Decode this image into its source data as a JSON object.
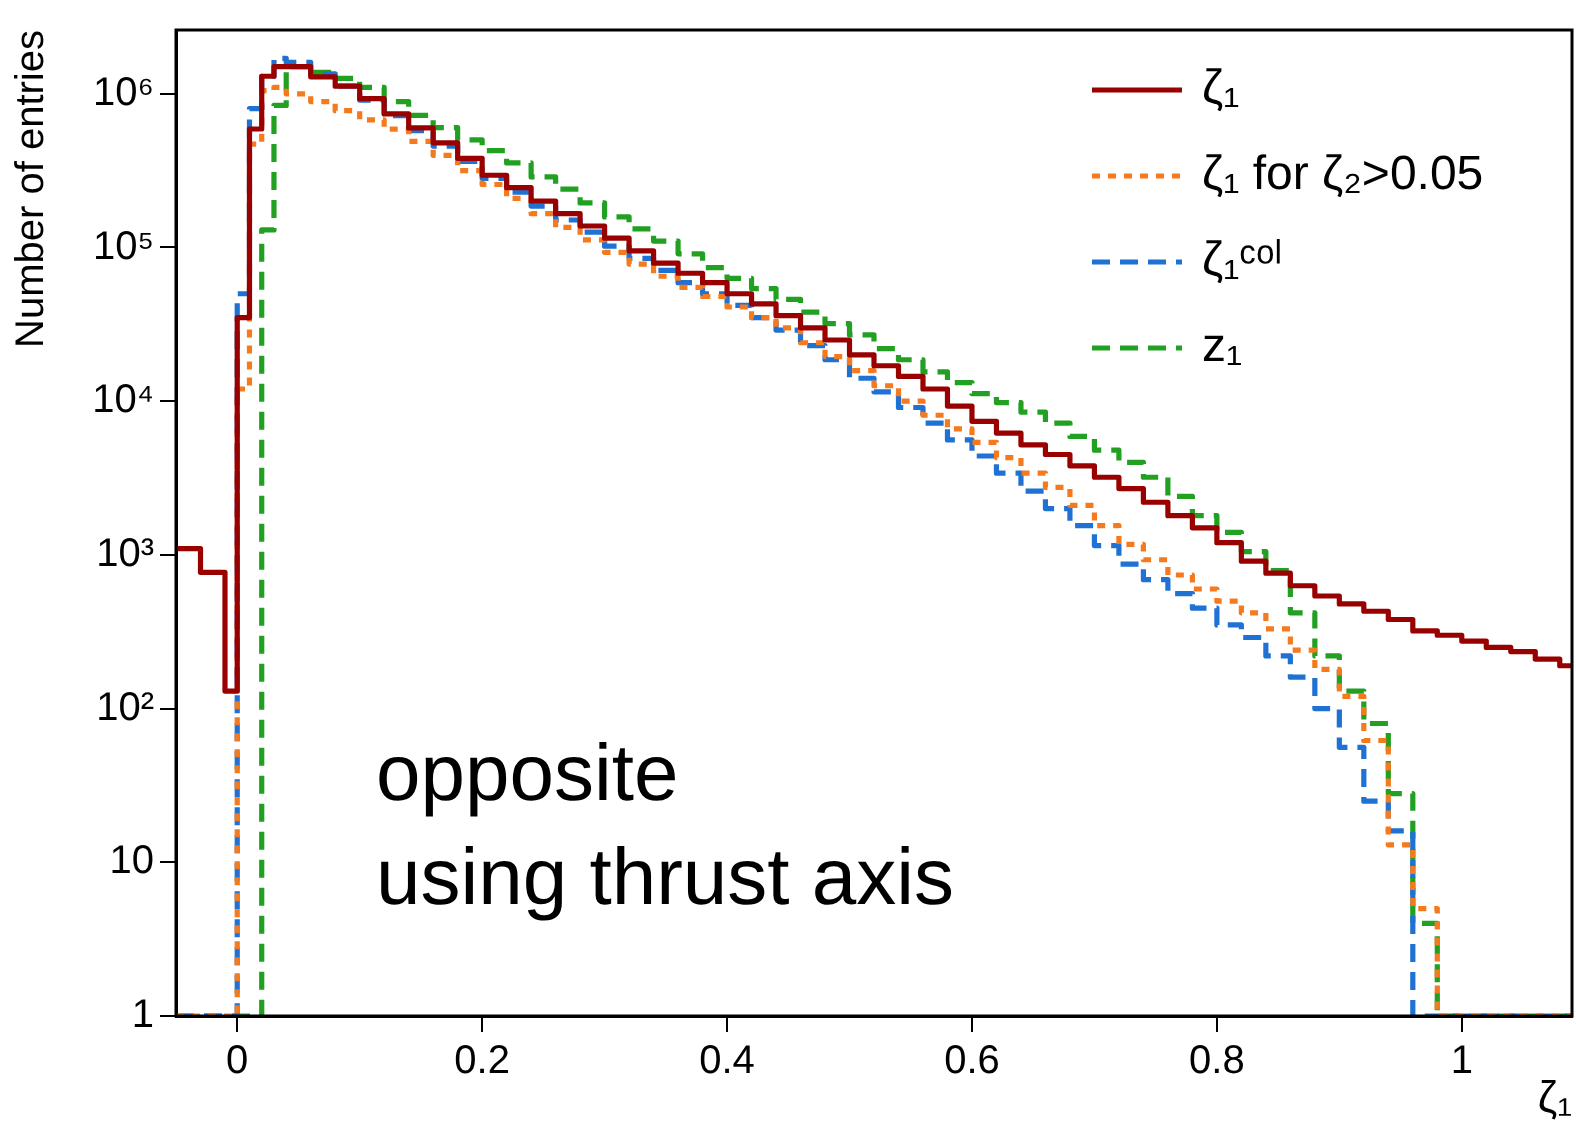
{
  "chart_data": {
    "type": "histogram",
    "xlabel": "ζ₁",
    "ylabel": "Number of entries",
    "annotations": [
      "opposite\nusing thrust axis"
    ],
    "bins": [
      -0.05,
      -0.03,
      -0.01,
      0,
      0.01,
      0.02,
      0.03,
      0.04,
      0.06,
      0.08,
      0.1,
      0.12,
      0.14,
      0.16,
      0.18,
      0.2,
      0.22,
      0.24,
      0.26,
      0.28,
      0.3,
      0.32,
      0.34,
      0.36,
      0.38,
      0.4,
      0.42,
      0.44,
      0.46,
      0.48,
      0.5,
      0.52,
      0.54,
      0.56,
      0.58,
      0.6,
      0.62,
      0.64,
      0.66,
      0.68,
      0.7,
      0.72,
      0.74,
      0.76,
      0.78,
      0.8,
      0.82,
      0.84,
      0.86,
      0.88,
      0.9,
      0.92,
      0.94,
      0.96,
      0.98,
      1,
      1.02,
      1.04,
      1.06,
      1.08,
      1.09
    ],
    "series": [
      {
        "name": "ζ₁",
        "color": "#990000",
        "line_style": "solid",
        "values": [
          1100,
          770,
          130,
          35000,
          590000,
          1300000,
          1500000,
          1500000,
          1290000,
          1120000,
          930000,
          740000,
          600000,
          480000,
          380000,
          295000,
          245000,
          200000,
          166000,
          138000,
          115000,
          95000,
          79000,
          68000,
          59000,
          50000,
          43000,
          36000,
          30000,
          25000,
          20000,
          17000,
          14500,
          12000,
          9300,
          7400,
          6200,
          5200,
          4500,
          3800,
          3200,
          2700,
          2200,
          1800,
          1500,
          1200,
          910,
          760,
          630,
          540,
          480,
          430,
          380,
          320,
          300,
          275,
          250,
          235,
          210,
          190
        ]
      },
      {
        "name": "ζ₁ for ζ₂>0.05",
        "color": "#f57a1e",
        "line_style": "dotted",
        "values": [
          1,
          1,
          1,
          12000,
          470000,
          1050000,
          1100000,
          1000000,
          890000,
          776000,
          676000,
          589000,
          490000,
          398000,
          316000,
          257000,
          209000,
          166000,
          135000,
          112000,
          93000,
          78000,
          65000,
          55000,
          48000,
          41000,
          35000,
          30000,
          24000,
          19500,
          15800,
          12600,
          10000,
          8100,
          6600,
          5400,
          4300,
          3400,
          2750,
          2100,
          1550,
          1170,
          930,
          740,
          600,
          500,
          420,
          330,
          240,
          180,
          120,
          62,
          13,
          5,
          1,
          1,
          1,
          1,
          1,
          1
        ]
      },
      {
        "name": "ζ₁ᶜᵒˡ",
        "color": "#1f72d4",
        "line_style": "dashed",
        "values": [
          1,
          1,
          1,
          50000,
          800000,
          1300000,
          1700000,
          1600000,
          1350000,
          1120000,
          910000,
          720000,
          575000,
          457000,
          363000,
          282000,
          229000,
          186000,
          151000,
          126000,
          102000,
          85000,
          71000,
          59000,
          50000,
          42000,
          35000,
          29000,
          23000,
          18600,
          14100,
          11500,
          9100,
          7200,
          5600,
          4400,
          3400,
          2600,
          2000,
          1550,
          1150,
          870,
          690,
          560,
          450,
          350,
          290,
          220,
          160,
          100,
          56,
          25,
          16,
          1,
          1,
          1,
          1,
          1,
          1,
          1
        ]
      },
      {
        "name": "z₁",
        "color": "#22a022",
        "line_style": "dashed",
        "values": [
          1,
          1,
          1,
          1,
          1,
          130000,
          840000,
          1500000,
          1380000,
          1260000,
          1100000,
          890000,
          724000,
          603000,
          501000,
          427000,
          355000,
          288000,
          240000,
          195000,
          158000,
          132000,
          110000,
          91000,
          74000,
          63000,
          54000,
          46000,
          38000,
          32000,
          27000,
          22000,
          18600,
          15500,
          13200,
          11200,
          9800,
          8500,
          7200,
          5900,
          4800,
          4000,
          3200,
          2400,
          1800,
          1400,
          1050,
          790,
          420,
          220,
          130,
          80,
          28,
          4,
          1,
          1,
          1,
          1,
          1,
          1
        ]
      }
    ],
    "xlim": [
      -0.05,
      1.09
    ],
    "xticks": [
      0,
      0.2,
      0.4,
      0.6,
      0.8,
      1
    ],
    "ylim": [
      1,
      2600000
    ],
    "log": "y",
    "yticks": [
      1,
      10,
      {
        "value": 100,
        "label": "10²"
      },
      {
        "value": 1000,
        "label": "10³"
      },
      {
        "value": 10000,
        "label": "10⁴"
      },
      {
        "value": 100000,
        "label": "10⁵"
      },
      {
        "value": 1000000,
        "label": "10⁶"
      }
    ],
    "grid": false,
    "legend": "top right"
  }
}
